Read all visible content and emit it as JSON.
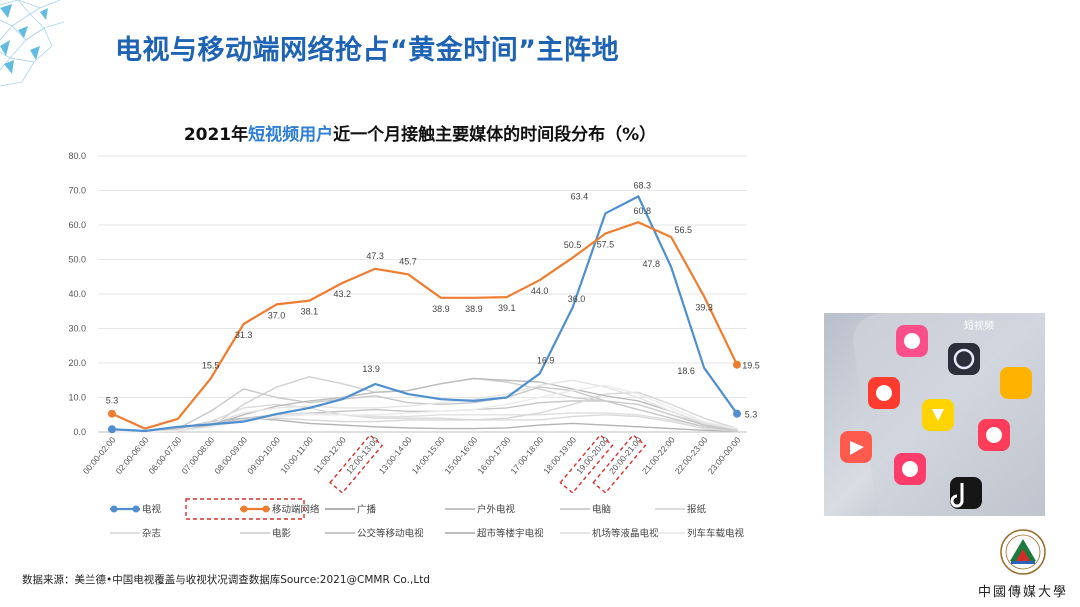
{
  "slide": {
    "title": "电视与移动端网络抢占“黄金时间”主阵地",
    "source": "数据来源：美兰德•中国电视覆盖与收视状况调查数据库Source:2021@CMMR Co.,Ltd",
    "photo_label": "短视频",
    "logo_text": "中國傳媒大學"
  },
  "chart_data": {
    "type": "line",
    "title_parts": [
      "2021年",
      "短视频用户",
      "近一个月接触主要媒体的时间段分布（%）"
    ],
    "highlight_color": "#2f7fd6",
    "ylim": [
      0,
      80
    ],
    "yticks": [
      "0.0",
      "10.0",
      "20.0",
      "30.0",
      "40.0",
      "50.0",
      "60.0",
      "70.0",
      "80.0"
    ],
    "categories": [
      "00:00-02:00",
      "02:00-06:00",
      "06:00-07:00",
      "07:00-08:00",
      "08:00-09:00",
      "09:00-10:00",
      "10:00-11:00",
      "11:00-12:00",
      "12:00-13:00",
      "13:00-14:00",
      "14:00-15:00",
      "15:00-16:00",
      "16:00-17:00",
      "17:00-18:00",
      "18:00-19:00",
      "19:00-20:00",
      "20:00-21:00",
      "21:00-22:00",
      "22:00-23:00",
      "23:00-00:00"
    ],
    "highlighted_categories": [
      8,
      15,
      16
    ],
    "highlighted_legend": 1,
    "series": [
      {
        "name": "电视",
        "color": "#4f8fd0",
        "width": 2.2,
        "main": true,
        "values": [
          0.8,
          0.3,
          1.5,
          2.2,
          3.0,
          5.2,
          7.0,
          9.5,
          13.9,
          11.0,
          9.5,
          9.0,
          10.0,
          16.9,
          36.0,
          63.4,
          68.3,
          47.8,
          18.6,
          5.3
        ],
        "labels": [
          null,
          null,
          null,
          null,
          null,
          null,
          null,
          null,
          "13.9",
          null,
          null,
          null,
          null,
          "16.9",
          "36.0",
          "63.4",
          "68.3",
          "47.8",
          "18.6",
          "5.3"
        ]
      },
      {
        "name": "移动端网络",
        "color": "#ee7d31",
        "width": 2.2,
        "main": true,
        "values": [
          5.3,
          1.0,
          3.8,
          15.5,
          31.3,
          37.0,
          38.1,
          43.2,
          47.3,
          45.7,
          38.9,
          38.9,
          39.1,
          44.0,
          50.5,
          57.5,
          60.8,
          56.5,
          39.3,
          19.5
        ],
        "labels": [
          "5.3",
          null,
          null,
          "15.5",
          "31.3",
          "37.0",
          "38.1",
          "43.2",
          "47.3",
          "45.7",
          "38.9",
          "38.9",
          "39.1",
          "44.0",
          "50.5",
          "57.5",
          "60.8",
          "56.5",
          "39.3",
          "19.5"
        ]
      },
      {
        "name": "广播",
        "color": "#b3b3b3",
        "width": 1.4,
        "values": [
          0.3,
          0.2,
          1.0,
          3.0,
          4.0,
          3.5,
          2.5,
          2.0,
          1.5,
          1.2,
          1.0,
          1.0,
          1.2,
          2.0,
          2.5,
          2.0,
          1.5,
          1.0,
          0.5,
          0.3
        ]
      },
      {
        "name": "户外电视",
        "color": "#c4c4c4",
        "width": 1.4,
        "values": [
          0.2,
          0.1,
          0.5,
          2.0,
          4.0,
          5.0,
          5.5,
          6.0,
          6.5,
          6.0,
          6.0,
          6.5,
          7.0,
          8.5,
          9.0,
          9.0,
          8.0,
          5.0,
          2.0,
          0.5
        ]
      },
      {
        "name": "电脑",
        "color": "#d0d0d0",
        "width": 1.4,
        "values": [
          0.5,
          0.2,
          0.5,
          1.5,
          8.0,
          13.0,
          16.0,
          14.0,
          11.5,
          12.0,
          14.0,
          15.5,
          14.5,
          12.5,
          10.0,
          9.0,
          8.0,
          5.0,
          2.5,
          1.0
        ]
      },
      {
        "name": "报纸",
        "color": "#dadada",
        "width": 1.4,
        "values": [
          0.1,
          0.1,
          0.5,
          3.0,
          7.0,
          8.0,
          7.0,
          5.0,
          4.0,
          4.0,
          4.0,
          3.5,
          3.5,
          3.5,
          4.5,
          5.0,
          4.5,
          3.0,
          1.0,
          0.3
        ]
      },
      {
        "name": "杂志",
        "color": "#e0e0e0",
        "width": 1.4,
        "values": [
          0.1,
          0.1,
          0.3,
          1.5,
          3.5,
          5.0,
          5.5,
          5.0,
          4.5,
          4.5,
          5.0,
          5.0,
          5.0,
          5.0,
          5.5,
          5.5,
          5.0,
          3.5,
          1.5,
          0.5
        ]
      },
      {
        "name": "电影",
        "color": "#d6d6d6",
        "width": 1.4,
        "values": [
          0.2,
          0.1,
          0.5,
          2.0,
          3.5,
          4.0,
          3.5,
          3.0,
          3.0,
          3.5,
          3.5,
          3.5,
          4.0,
          5.5,
          8.0,
          11.0,
          11.5,
          8.0,
          4.0,
          1.0
        ]
      },
      {
        "name": "公交等移动电视",
        "color": "#c8c8c8",
        "width": 1.4,
        "values": [
          0.2,
          0.1,
          1.0,
          6.0,
          12.5,
          10.0,
          8.5,
          9.5,
          10.5,
          8.5,
          8.0,
          8.5,
          10.0,
          13.0,
          12.0,
          9.0,
          6.5,
          4.0,
          1.5,
          0.5
        ]
      },
      {
        "name": "超市等楼宇电视",
        "color": "#bdbdbd",
        "width": 1.4,
        "values": [
          0.1,
          0.1,
          0.5,
          2.0,
          5.0,
          7.5,
          9.0,
          10.0,
          11.5,
          12.0,
          14.0,
          15.5,
          15.0,
          14.5,
          12.5,
          10.5,
          9.0,
          6.0,
          2.5,
          0.8
        ]
      },
      {
        "name": "机场等液晶电视",
        "color": "#e4e4e4",
        "width": 1.4,
        "values": [
          0.2,
          0.1,
          0.5,
          2.5,
          5.5,
          7.0,
          7.5,
          7.0,
          7.0,
          7.5,
          8.5,
          9.5,
          11.0,
          13.5,
          15.0,
          13.0,
          10.0,
          6.0,
          2.5,
          0.8
        ]
      },
      {
        "name": "列车车载电视",
        "color": "#ebebeb",
        "width": 1.4,
        "values": [
          0.1,
          0.1,
          0.3,
          1.5,
          3.0,
          4.5,
          5.0,
          5.0,
          5.0,
          5.5,
          6.0,
          6.5,
          8.0,
          10.0,
          12.0,
          13.5,
          11.0,
          7.0,
          3.0,
          1.0
        ]
      }
    ]
  }
}
